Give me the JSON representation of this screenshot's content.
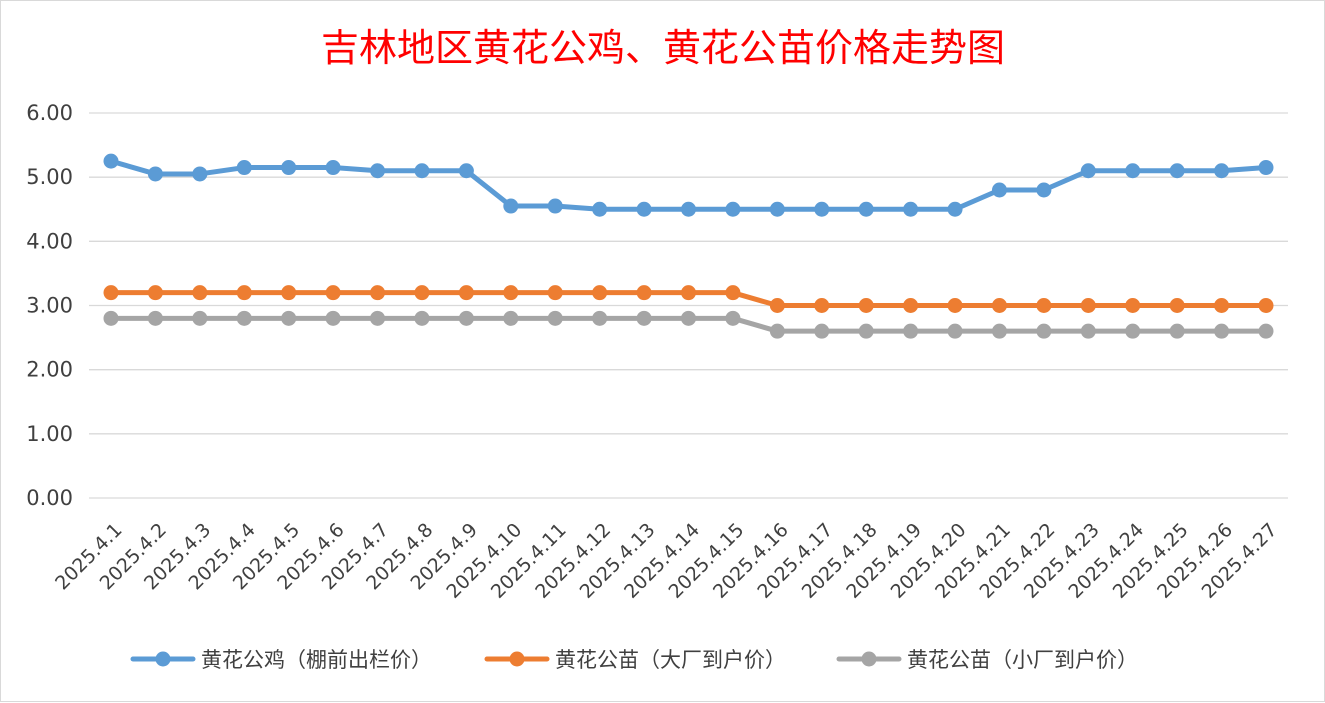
{
  "chart_data": {
    "type": "line",
    "title": "吉林地区黄花公鸡、黄花公苗价格走势图",
    "xlabel": "",
    "ylabel": "",
    "ylim": [
      0,
      6
    ],
    "yticks": [
      "0.00",
      "1.00",
      "2.00",
      "3.00",
      "4.00",
      "5.00",
      "6.00"
    ],
    "grid": true,
    "legend_position": "bottom",
    "categories": [
      "2025.4.1",
      "2025.4.2",
      "2025.4.3",
      "2025.4.4",
      "2025.4.5",
      "2025.4.6",
      "2025.4.7",
      "2025.4.8",
      "2025.4.9",
      "2025.4.10",
      "2025.4.11",
      "2025.4.12",
      "2025.4.13",
      "2025.4.14",
      "2025.4.15",
      "2025.4.16",
      "2025.4.17",
      "2025.4.18",
      "2025.4.19",
      "2025.4.20",
      "2025.4.21",
      "2025.4.22",
      "2025.4.23",
      "2025.4.24",
      "2025.4.25",
      "2025.4.26",
      "2025.4.27"
    ],
    "series": [
      {
        "name": "黄花公鸡（棚前出栏价）",
        "color": "#5b9bd5",
        "values": [
          5.25,
          5.05,
          5.05,
          5.15,
          5.15,
          5.15,
          5.1,
          5.1,
          5.1,
          4.55,
          4.55,
          4.5,
          4.5,
          4.5,
          4.5,
          4.5,
          4.5,
          4.5,
          4.5,
          4.5,
          4.8,
          4.8,
          5.1,
          5.1,
          5.1,
          5.1,
          5.15
        ]
      },
      {
        "name": "黄花公苗（大厂到户价）",
        "color": "#ed7d31",
        "values": [
          3.2,
          3.2,
          3.2,
          3.2,
          3.2,
          3.2,
          3.2,
          3.2,
          3.2,
          3.2,
          3.2,
          3.2,
          3.2,
          3.2,
          3.2,
          3.0,
          3.0,
          3.0,
          3.0,
          3.0,
          3.0,
          3.0,
          3.0,
          3.0,
          3.0,
          3.0,
          3.0
        ]
      },
      {
        "name": "黄花公苗（小厂到户价）",
        "color": "#a5a5a5",
        "values": [
          2.8,
          2.8,
          2.8,
          2.8,
          2.8,
          2.8,
          2.8,
          2.8,
          2.8,
          2.8,
          2.8,
          2.8,
          2.8,
          2.8,
          2.8,
          2.6,
          2.6,
          2.6,
          2.6,
          2.6,
          2.6,
          2.6,
          2.6,
          2.6,
          2.6,
          2.6,
          2.6
        ]
      }
    ]
  }
}
